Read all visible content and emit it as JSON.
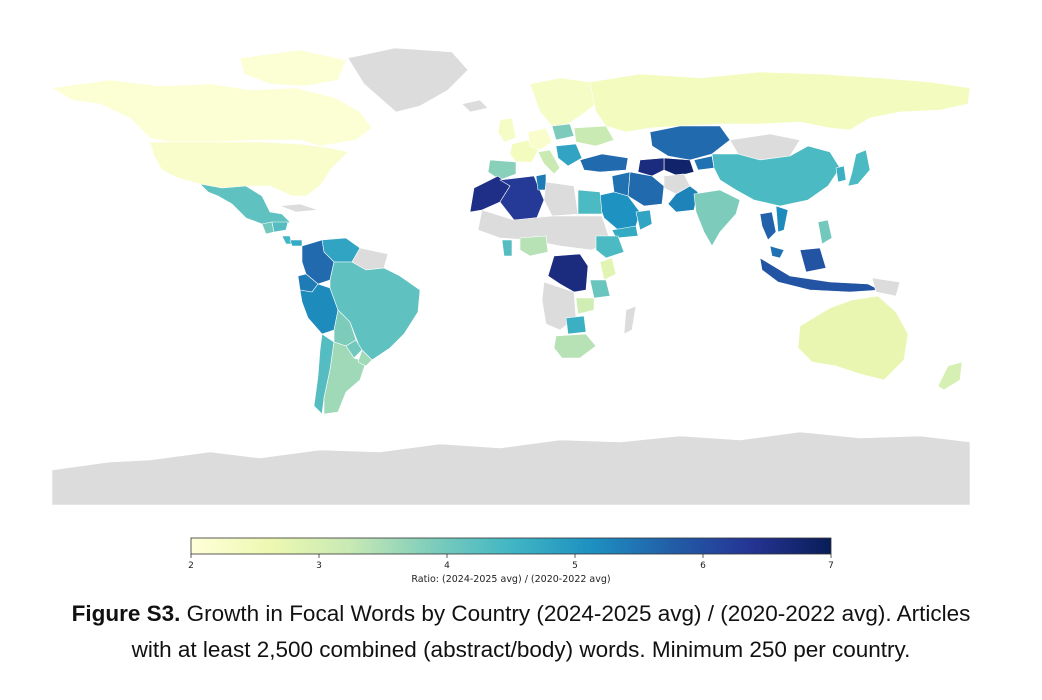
{
  "colorbar": {
    "min": 2,
    "max": 7,
    "ticks": [
      "2",
      "3",
      "4",
      "5",
      "6",
      "7"
    ],
    "label": "Ratio: (2024-2025 avg) / (2020-2022 avg)",
    "stops": [
      "#ffffd9",
      "#edf8b1",
      "#c7e9b4",
      "#7fcdbb",
      "#41b6c4",
      "#1d91c0",
      "#225ea8",
      "#253494",
      "#081d58"
    ],
    "no_data_color": "#dcdcdc"
  },
  "caption": {
    "lead": "Figure S3.",
    "line1": " Growth in Focal Words by Country (2024-2025 avg) / (2020-2022 avg). Articles",
    "line2": "with at least 2,500 combined (abstract/body) words. Minimum 250 per country."
  },
  "chart_data": {
    "type": "choropleth",
    "value_name": "Ratio: (2024-2025 avg) / (2020-2022 avg)",
    "scale": [
      2,
      7
    ],
    "countries": [
      {
        "name": "United States",
        "value": 2.2
      },
      {
        "name": "Canada",
        "value": 2.1
      },
      {
        "name": "Mexico",
        "value": 4.2
      },
      {
        "name": "Guatemala",
        "value": 4.0
      },
      {
        "name": "Honduras",
        "value": 4.3
      },
      {
        "name": "Costa Rica",
        "value": 4.5
      },
      {
        "name": "Panama",
        "value": 4.7
      },
      {
        "name": "Colombia",
        "value": 5.6
      },
      {
        "name": "Venezuela",
        "value": 4.8
      },
      {
        "name": "Ecuador",
        "value": 5.4
      },
      {
        "name": "Peru",
        "value": 5.2
      },
      {
        "name": "Brazil",
        "value": 4.2
      },
      {
        "name": "Bolivia",
        "value": 3.9
      },
      {
        "name": "Chile",
        "value": 4.3
      },
      {
        "name": "Argentina",
        "value": 3.6
      },
      {
        "name": "Uruguay",
        "value": 3.6
      },
      {
        "name": "Paraguay",
        "value": 4.0
      },
      {
        "name": "Greenland",
        "value": null
      },
      {
        "name": "Russia",
        "value": 2.4
      },
      {
        "name": "Kazakhstan",
        "value": 5.6
      },
      {
        "name": "Uzbekistan",
        "value": 6.8
      },
      {
        "name": "Turkmenistan",
        "value": 6.6
      },
      {
        "name": "Kyrgyzstan",
        "value": 5.5
      },
      {
        "name": "Tajikistan",
        "value": 6.2
      },
      {
        "name": "Mongolia",
        "value": null
      },
      {
        "name": "China",
        "value": 4.4
      },
      {
        "name": "Japan",
        "value": 4.4
      },
      {
        "name": "South Korea",
        "value": 4.6
      },
      {
        "name": "India",
        "value": 3.9
      },
      {
        "name": "Pakistan",
        "value": 5.3
      },
      {
        "name": "Afghanistan",
        "value": null
      },
      {
        "name": "Iran",
        "value": 5.6
      },
      {
        "name": "Iraq",
        "value": 5.5
      },
      {
        "name": "Saudi Arabia",
        "value": 5.1
      },
      {
        "name": "Yemen",
        "value": 4.7
      },
      {
        "name": "Oman",
        "value": 4.8
      },
      {
        "name": "Turkey",
        "value": 5.6
      },
      {
        "name": "Egypt",
        "value": 4.4
      },
      {
        "name": "Libya",
        "value": null
      },
      {
        "name": "Algeria",
        "value": 6.3
      },
      {
        "name": "Morocco",
        "value": 6.5
      },
      {
        "name": "Tunisia",
        "value": 5.4
      },
      {
        "name": "Nigeria",
        "value": 3.4
      },
      {
        "name": "Ghana",
        "value": 4.3
      },
      {
        "name": "Ethiopia",
        "value": 4.4
      },
      {
        "name": "Kenya",
        "value": 2.8
      },
      {
        "name": "DR Congo",
        "value": 6.6
      },
      {
        "name": "Tanzania",
        "value": 4.1
      },
      {
        "name": "Zambia",
        "value": 3.1
      },
      {
        "name": "Zimbabwe",
        "value": 4.6
      },
      {
        "name": "South Africa",
        "value": 3.4
      },
      {
        "name": "Thailand",
        "value": 5.7
      },
      {
        "name": "Vietnam",
        "value": 5.2
      },
      {
        "name": "Malaysia",
        "value": 5.5
      },
      {
        "name": "Indonesia",
        "value": 5.9
      },
      {
        "name": "Philippines",
        "value": 4.0
      },
      {
        "name": "Australia",
        "value": 2.7
      },
      {
        "name": "New Zealand",
        "value": 3.0
      },
      {
        "name": "Antarctica",
        "value": null
      },
      {
        "name": "France",
        "value": 2.4
      },
      {
        "name": "Spain",
        "value": 3.8
      },
      {
        "name": "Germany",
        "value": 2.2
      },
      {
        "name": "Italy",
        "value": 3.2
      },
      {
        "name": "United Kingdom",
        "value": 2.3
      },
      {
        "name": "Poland",
        "value": 3.9
      },
      {
        "name": "Ukraine",
        "value": 3.2
      },
      {
        "name": "Scandinavia",
        "value": 2.3
      }
    ]
  }
}
